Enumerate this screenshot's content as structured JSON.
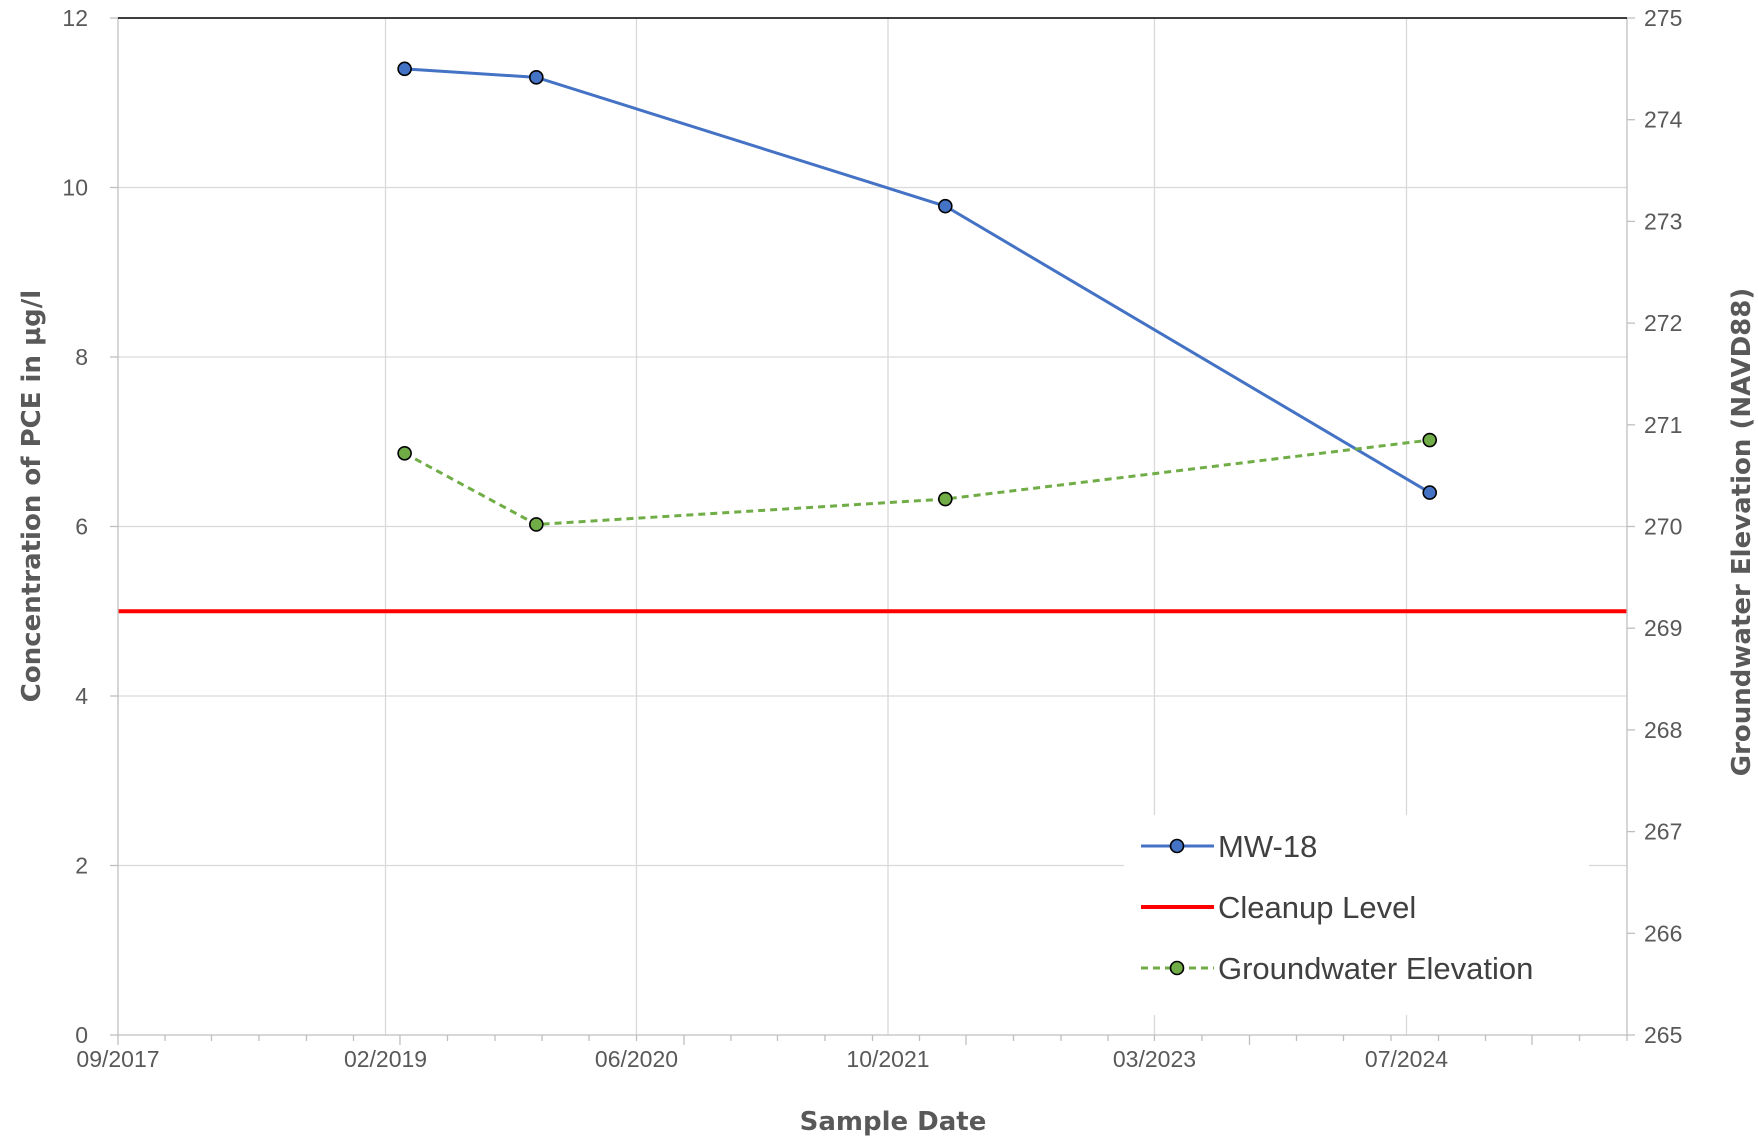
{
  "chart_data": {
    "type": "line",
    "title": "",
    "xlabel": "Sample Date",
    "ylabel": "Concentration of PCE in µg/l",
    "y2label": "Groundwater Elevation (NAVD88)",
    "x_ticks": [
      "09/2017",
      "02/2019",
      "06/2020",
      "10/2021",
      "03/2023",
      "07/2024"
    ],
    "y_ticks": [
      "0",
      "2",
      "4",
      "6",
      "8",
      "10",
      "12"
    ],
    "y2_ticks": [
      "265",
      "266",
      "267",
      "268",
      "269",
      "270",
      "271",
      "272",
      "273",
      "274",
      "275"
    ],
    "xlim": [
      "2017-09-01",
      "2025-09-01"
    ],
    "ylim": [
      0,
      12
    ],
    "y2lim": [
      265,
      275
    ],
    "grid": "vertical and horizontal",
    "legend_position": "bottom-right",
    "series": [
      {
        "name": "MW-18",
        "axis": "left",
        "color": "#4472c4",
        "marker_fill": "#4472c4",
        "style": "solid",
        "x": [
          "2019-03-10",
          "2019-11-20",
          "2022-01-20",
          "2024-08-15"
        ],
        "y": [
          11.4,
          11.3,
          9.78,
          6.4
        ]
      },
      {
        "name": "Cleanup Level",
        "axis": "left",
        "color": "#ff0000",
        "style": "solid",
        "value": 5
      },
      {
        "name": "Groundwater Elevation",
        "axis": "right",
        "color": "#70ad47",
        "marker_fill": "#70ad47",
        "style": "dashed",
        "x": [
          "2019-03-10",
          "2019-11-20",
          "2022-01-20",
          "2024-08-15"
        ],
        "y": [
          270.72,
          270.02,
          270.27,
          270.85
        ]
      }
    ]
  }
}
